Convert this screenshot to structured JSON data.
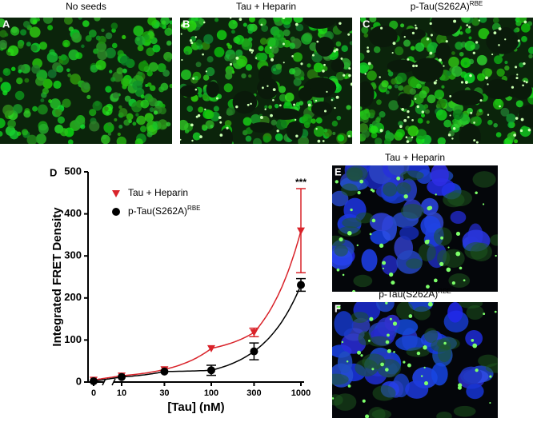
{
  "panels": [
    {
      "letter": "A",
      "title": "No seeds"
    },
    {
      "letter": "B",
      "title": "Tau + Heparin"
    },
    {
      "letter": "C",
      "title": "p-Tau(S262A)",
      "title_sup": "RBE"
    },
    {
      "letter": "E",
      "title": "Tau + Heparin"
    },
    {
      "letter": "F",
      "title": "p-Tau(S262A)",
      "title_sup": "RBE"
    }
  ],
  "chart_data": {
    "type": "scatter",
    "letter": "D",
    "x_label": "[Tau] (nM)",
    "y_label": "Integrated FRET Density",
    "x": [
      0,
      10,
      30,
      100,
      300,
      1000
    ],
    "xticks": [
      0,
      10,
      30,
      100,
      300,
      1000
    ],
    "ylim": [
      0,
      500
    ],
    "yticks": [
      0,
      100,
      200,
      300,
      400,
      500
    ],
    "annotation": "***",
    "series": [
      {
        "name": "Tau + Heparin",
        "color": "#d9232a",
        "marker": "triangle-down",
        "values": [
          5,
          15,
          30,
          80,
          118,
          360
        ],
        "errors": [
          null,
          null,
          null,
          null,
          10,
          100
        ]
      },
      {
        "name": "p-Tau(S262A)",
        "name_sup": "RBE",
        "color": "#000000",
        "marker": "circle",
        "values": [
          2,
          12,
          25,
          28,
          73,
          231
        ],
        "errors": [
          null,
          null,
          null,
          12,
          20,
          15
        ]
      }
    ]
  }
}
